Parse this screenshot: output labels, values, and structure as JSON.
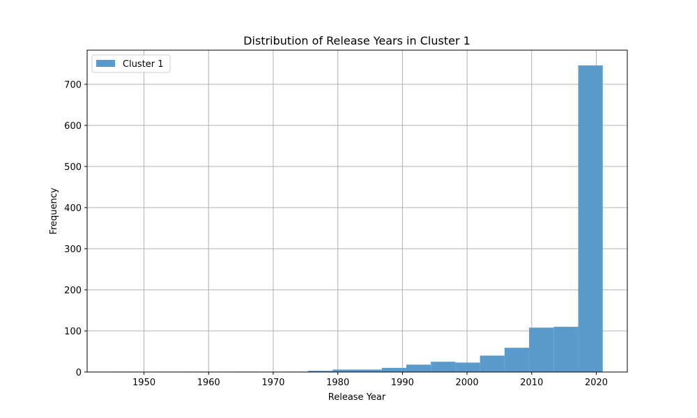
{
  "chart_data": {
    "type": "bar",
    "title": "Distribution of Release Years in Cluster 1",
    "xlabel": "Release Year",
    "ylabel": "Frequency",
    "xlim": [
      1941.2,
      2024.8
    ],
    "ylim": [
      0,
      783
    ],
    "xticks": [
      1950,
      1960,
      1970,
      1980,
      1990,
      2000,
      2010,
      2020
    ],
    "yticks": [
      0,
      100,
      200,
      300,
      400,
      500,
      600,
      700
    ],
    "grid": true,
    "legend": {
      "position": "top-left"
    },
    "bar_color": "#5b9bcb",
    "series": [
      {
        "name": "Cluster 1",
        "bins": [
          {
            "x0": 1945.0,
            "x1": 1948.8,
            "value": 1
          },
          {
            "x0": 1948.8,
            "x1": 1952.6,
            "value": 0
          },
          {
            "x0": 1952.6,
            "x1": 1956.4,
            "value": 0
          },
          {
            "x0": 1956.4,
            "x1": 1960.2,
            "value": 1
          },
          {
            "x0": 1960.2,
            "x1": 1964.0,
            "value": 0
          },
          {
            "x0": 1964.0,
            "x1": 1967.8,
            "value": 1
          },
          {
            "x0": 1967.8,
            "x1": 1971.6,
            "value": 0
          },
          {
            "x0": 1971.6,
            "x1": 1975.4,
            "value": 1
          },
          {
            "x0": 1975.4,
            "x1": 1979.2,
            "value": 3
          },
          {
            "x0": 1979.2,
            "x1": 1983.0,
            "value": 6
          },
          {
            "x0": 1983.0,
            "x1": 1986.8,
            "value": 6
          },
          {
            "x0": 1986.8,
            "x1": 1990.6,
            "value": 10
          },
          {
            "x0": 1990.6,
            "x1": 1994.4,
            "value": 18
          },
          {
            "x0": 1994.4,
            "x1": 1998.2,
            "value": 25
          },
          {
            "x0": 1998.2,
            "x1": 2002.0,
            "value": 23
          },
          {
            "x0": 2002.0,
            "x1": 2005.8,
            "value": 40
          },
          {
            "x0": 2005.8,
            "x1": 2009.6,
            "value": 59
          },
          {
            "x0": 2009.6,
            "x1": 2013.4,
            "value": 108
          },
          {
            "x0": 2013.4,
            "x1": 2017.2,
            "value": 110
          },
          {
            "x0": 2017.2,
            "x1": 2021.0,
            "value": 746
          }
        ]
      }
    ]
  }
}
